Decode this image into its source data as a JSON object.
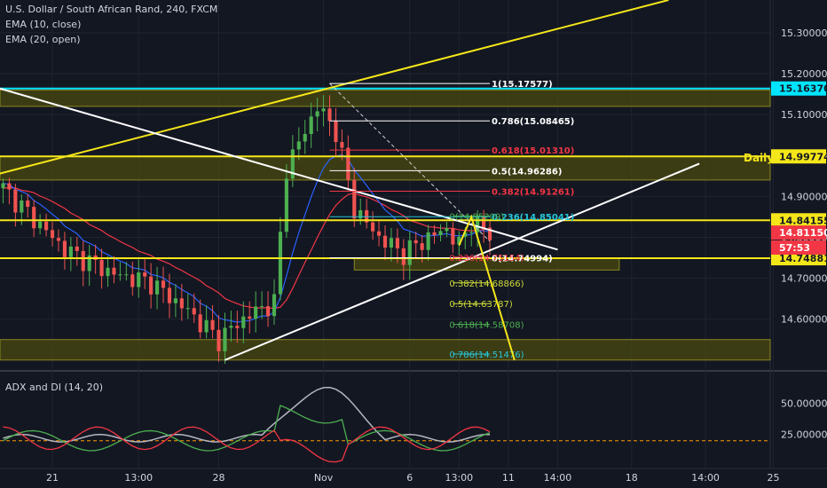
{
  "chart_data": {
    "type": "candlestick",
    "title": "U.S. Dollar / South African Rand, 240, FXCM",
    "indicators": [
      "EMA (10, close)",
      "EMA (20, open)"
    ],
    "ylim": [
      14.48,
      15.38
    ],
    "price_ticks": [
      "15.30000",
      "15.20000",
      "15.10000",
      "15.00000",
      "14.90000",
      "14.80000",
      "14.70000",
      "14.60000"
    ],
    "price_tick_values": [
      15.3,
      15.2,
      15.1,
      15.0,
      14.9,
      14.8,
      14.7,
      14.6
    ],
    "x_ticks": [
      "21",
      "13:00",
      "28",
      "Nov",
      "6",
      "13:00",
      "11",
      "14:00",
      "18",
      "14:00",
      "25"
    ],
    "x_tick_index": [
      8,
      22,
      35,
      52,
      66,
      74,
      82,
      90,
      102,
      114,
      125
    ],
    "bar_count": 125,
    "colors": {
      "background": "#131722",
      "up": "#4caf50",
      "down": "#ef5350",
      "ema10": "#2962ff",
      "ema20": "#f23645",
      "level_yellow": "#f5e61a",
      "level_cyan": "#00e5ff",
      "zone_fill": "#4b4a10",
      "trend_white": "#ffffff",
      "adx_line": "#b2b5be",
      "di_plus": "#4caf50",
      "di_minus": "#f23645",
      "adx_threshold": "#ff9800"
    },
    "horizontal_levels": [
      {
        "label": "15.16370",
        "value": 15.1637,
        "color": "#00e5ff"
      },
      {
        "label": "14.99774",
        "value": 14.99774,
        "color": "#f5e61a"
      },
      {
        "label": "14.84155",
        "value": 14.84155,
        "color": "#f5e61a"
      },
      {
        "label": "14.74881",
        "value": 14.74881,
        "color": "#f5e61a"
      }
    ],
    "price_badges": [
      {
        "label": "14.81150",
        "value": 14.8115,
        "color": "#f23645"
      },
      {
        "label": "57:53",
        "value": 14.775,
        "color": "#f23645"
      }
    ],
    "zones": [
      {
        "from": 15.12,
        "to": 15.16,
        "x0": -2,
        "x1": 125
      },
      {
        "from": 14.94,
        "to": 14.998,
        "x0": -2,
        "x1": 125
      },
      {
        "from": 14.72,
        "to": 14.75,
        "x0": 57,
        "x1": 100
      },
      {
        "from": 14.5,
        "to": 14.55,
        "x0": -2,
        "x1": 125
      }
    ],
    "zone_label": "Daily",
    "fib_retracement": [
      {
        "label": "1(15.17577)",
        "value": 15.17577,
        "color": "#ffffff"
      },
      {
        "label": "0.786(15.08465)",
        "value": 15.08465,
        "color": "#ffffff"
      },
      {
        "label": "0.618(15.01310)",
        "value": 15.0131,
        "color": "#f23645"
      },
      {
        "label": "0.5(14.96286)",
        "value": 14.96286,
        "color": "#ffffff"
      },
      {
        "label": "0.382(14.91261)",
        "value": 14.91261,
        "color": "#f23645"
      },
      {
        "label": "0.236(14.85041)",
        "value": 14.85041,
        "color": "#26c6da"
      },
      {
        "label": "0(14.74994)",
        "value": 14.74994,
        "color": "#ffffff"
      }
    ],
    "fib_extension": [
      {
        "label": "0(14.85209)",
        "value": 14.85209,
        "color": "#4caf50"
      },
      {
        "label": "0.236(14.75154)",
        "value": 14.75154,
        "color": "#f23645"
      },
      {
        "label": "0.382(14.68866)",
        "value": 14.68866,
        "color": "#cddc39"
      },
      {
        "label": "0.5(14.63787)",
        "value": 14.63787,
        "color": "#cddc39"
      },
      {
        "label": "0.618(14.58708)",
        "value": 14.58708,
        "color": "#4caf50"
      },
      {
        "label": "0.786(14.51476)",
        "value": 14.51476,
        "color": "#26c6da"
      }
    ],
    "trendlines": [
      {
        "color": "#f5e61a",
        "points": [
          [
            -2,
            14.95
          ],
          [
            108,
            15.38
          ]
        ]
      },
      {
        "color": "#ffffff",
        "points": [
          [
            -2,
            15.17
          ],
          [
            90,
            14.77
          ]
        ]
      },
      {
        "color": "#ffffff",
        "points": [
          [
            36,
            14.5
          ],
          [
            113,
            14.98
          ]
        ]
      }
    ],
    "projection": {
      "color": "#f5e61a",
      "points": [
        [
          74,
          14.78
        ],
        [
          76,
          14.85
        ],
        [
          83,
          14.5
        ]
      ]
    },
    "adx_panel": {
      "label": "ADX and DI (14, 20)",
      "ticks": [
        "50.00000",
        "25.00000"
      ],
      "tick_values": [
        50,
        25
      ],
      "ylim": [
        0,
        70
      ],
      "threshold": 20
    }
  }
}
